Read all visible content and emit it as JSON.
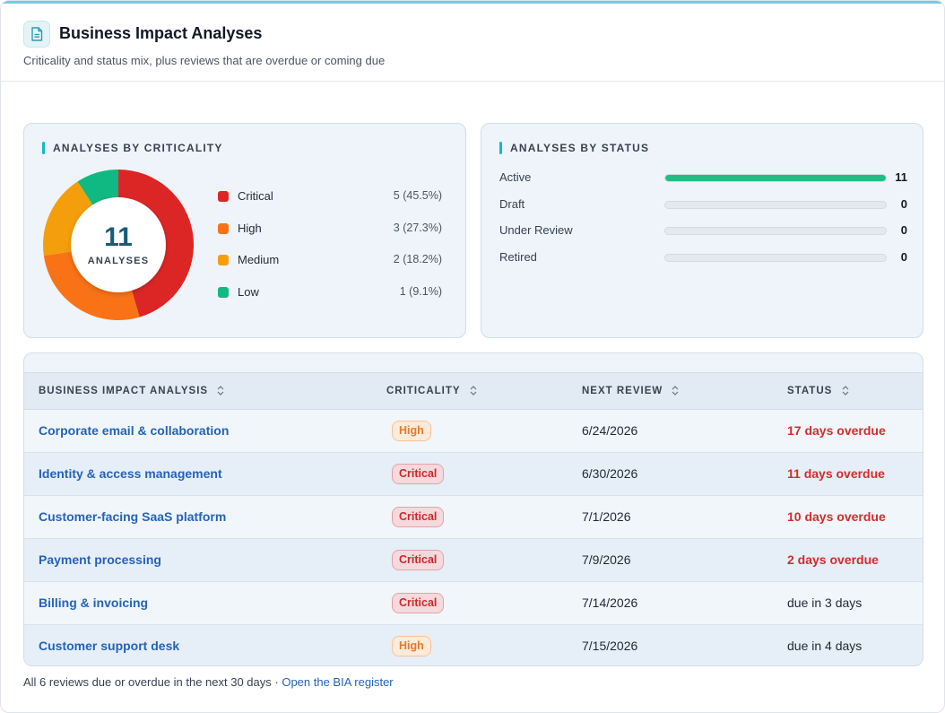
{
  "header": {
    "title": "Business Impact Analyses",
    "subtitle": "Criticality and status mix, plus reviews that are overdue or coming due",
    "icon": "document-icon"
  },
  "criticality": {
    "heading": "ANALYSES BY CRITICALITY",
    "total": "11",
    "total_label": "ANALYSES",
    "items": [
      {
        "name": "Critical",
        "count": 5,
        "value": "5 (45.5%)",
        "color": "#dc2626"
      },
      {
        "name": "High",
        "count": 3,
        "value": "3 (27.3%)",
        "color": "#f97316"
      },
      {
        "name": "Medium",
        "count": 2,
        "value": "2 (18.2%)",
        "color": "#f59e0b"
      },
      {
        "name": "Low",
        "count": 1,
        "value": "1 (9.1%)",
        "color": "#10b981"
      }
    ]
  },
  "status": {
    "heading": "ANALYSES BY STATUS",
    "max": 11,
    "items": [
      {
        "label": "Active",
        "count": "11",
        "fraction": 1.0
      },
      {
        "label": "Draft",
        "count": "0",
        "fraction": 0
      },
      {
        "label": "Under Review",
        "count": "0",
        "fraction": 0
      },
      {
        "label": "Retired",
        "count": "0",
        "fraction": 0
      }
    ]
  },
  "table": {
    "columns": [
      "BUSINESS IMPACT ANALYSIS",
      "CRITICALITY",
      "NEXT REVIEW",
      "STATUS"
    ],
    "rows": [
      {
        "name": "Corporate email & collaboration",
        "criticality": "High",
        "next_review": "6/24/2026",
        "status": "17 days overdue",
        "overdue": true
      },
      {
        "name": "Identity & access management",
        "criticality": "Critical",
        "next_review": "6/30/2026",
        "status": "11 days overdue",
        "overdue": true
      },
      {
        "name": "Customer-facing SaaS platform",
        "criticality": "Critical",
        "next_review": "7/1/2026",
        "status": "10 days overdue",
        "overdue": true
      },
      {
        "name": "Payment processing",
        "criticality": "Critical",
        "next_review": "7/9/2026",
        "status": "2 days overdue",
        "overdue": true
      },
      {
        "name": "Billing & invoicing",
        "criticality": "Critical",
        "next_review": "7/14/2026",
        "status": "due in 3 days",
        "overdue": false
      },
      {
        "name": "Customer support desk",
        "criticality": "High",
        "next_review": "7/15/2026",
        "status": "due in 4 days",
        "overdue": false
      }
    ]
  },
  "footer": {
    "text": "All 6 reviews due or overdue in the next 30 days · ",
    "link": "Open the BIA register"
  },
  "colors": {
    "accent": "#14b8c8",
    "link": "#2563b8",
    "overdue": "#d12d2d",
    "active_bar": "#1fbf84"
  }
}
